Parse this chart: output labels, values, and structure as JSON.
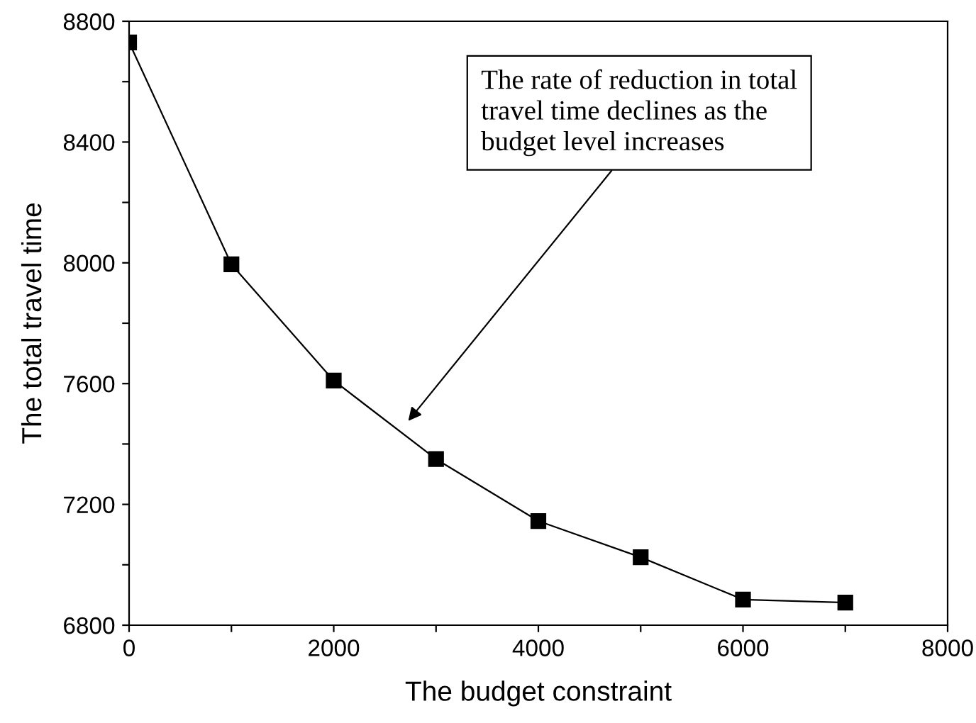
{
  "chart_data": {
    "type": "line",
    "xlabel": "The budget constraint",
    "ylabel": "The total travel time",
    "x": [
      0,
      1000,
      2000,
      3000,
      4000,
      5000,
      6000,
      7000
    ],
    "series": [
      {
        "color": "#000000",
        "values": [
          8730,
          7995,
          7610,
          7350,
          7145,
          7025,
          6885,
          6875
        ]
      }
    ],
    "marker": "square",
    "line_style": "solid",
    "grid": false,
    "legend": false,
    "xlim": [
      0,
      8000
    ],
    "ylim": [
      6800,
      8800
    ],
    "xticks": [
      0,
      {
        "value": 1000,
        "label": null
      },
      2000,
      {
        "value": 3000,
        "label": null
      },
      4000,
      {
        "value": 5000,
        "label": null
      },
      6000,
      {
        "value": 7000,
        "label": null
      },
      8000
    ],
    "yticks": [
      6800,
      {
        "value": 7000,
        "label": null
      },
      7200,
      {
        "value": 7400,
        "label": null
      },
      7600,
      {
        "value": 7800,
        "label": null
      },
      8000,
      {
        "value": 8200,
        "label": null
      },
      8400,
      {
        "value": 8600,
        "label": null
      },
      8800
    ],
    "annotations": [
      "The rate of reduction in total\ntravel time declines as the\nbudget level increases"
    ]
  }
}
